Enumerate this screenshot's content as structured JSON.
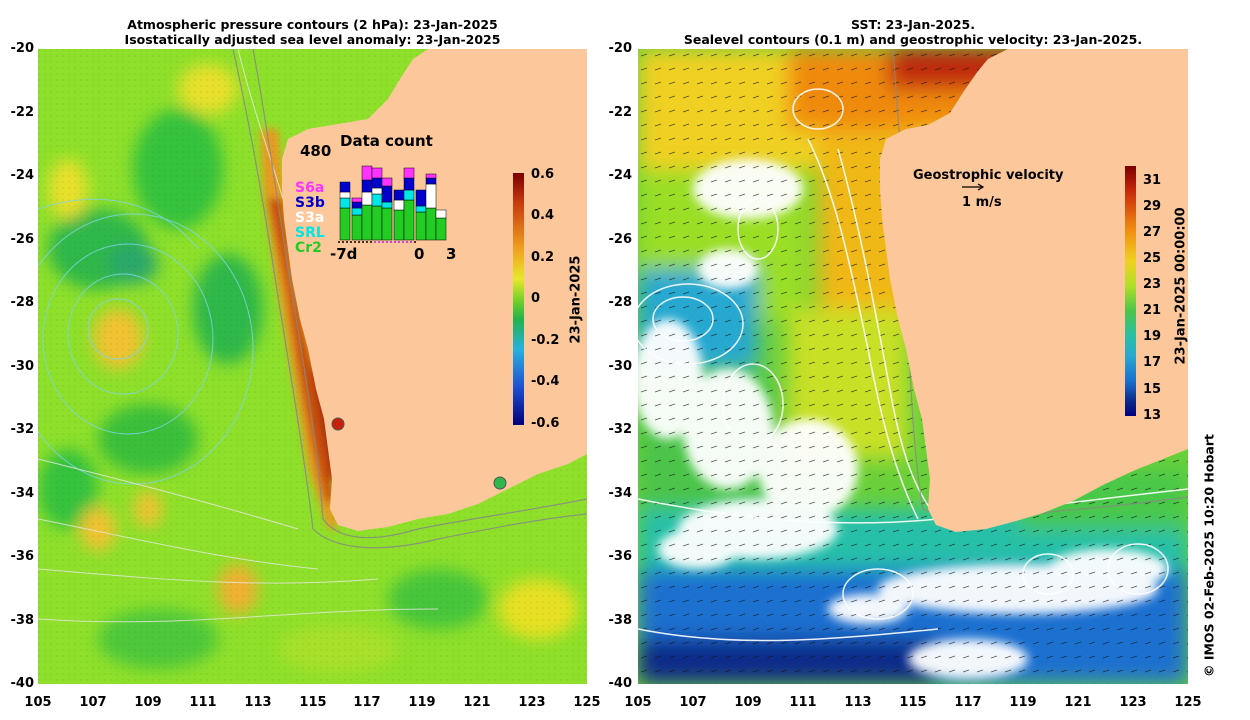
{
  "left_panel": {
    "title_line1": "Atmospheric pressure contours (2 hPa): 23-Jan-2025",
    "title_line2": "Isostatically adjusted sea level anomaly: 23-Jan-2025",
    "colorbar": {
      "ticks": [
        "0.6",
        "0.4",
        "0.2",
        "0",
        "-0.2",
        "-0.4",
        "-0.6"
      ],
      "label": "23-Jan-2025",
      "range": [
        -0.6,
        0.6
      ]
    },
    "inset": {
      "title": "Data count",
      "ymax_label": "480",
      "x_labels": [
        "-7d",
        "0",
        "3"
      ],
      "legend": [
        {
          "name": "S6a",
          "color": "#ff33ff"
        },
        {
          "name": "S3b",
          "color": "#0000cc"
        },
        {
          "name": "S3a",
          "color": "#ffffff"
        },
        {
          "name": "SRL",
          "color": "#00e5e5"
        },
        {
          "name": "Cr2",
          "color": "#22cc22"
        }
      ]
    }
  },
  "right_panel": {
    "title_line1": "SST: 23-Jan-2025.",
    "title_line2": "Sealevel contours (0.1 m) and geostrophic velocity: 23-Jan-2025.",
    "colorbar": {
      "ticks": [
        "31",
        "29",
        "27",
        "25",
        "23",
        "21",
        "19",
        "17",
        "15",
        "13"
      ],
      "label": "23-Jan-2025 00:00:00",
      "range": [
        13,
        32
      ]
    },
    "velocity_legend": {
      "title": "Geostrophic velocity",
      "scale": "1 m/s"
    },
    "copyright": "© IMOS 02-Feb-2025 10:20 Hobart"
  },
  "axes": {
    "lat_labels": [
      "-20",
      "-22",
      "-24",
      "-26",
      "-28",
      "-30",
      "-32",
      "-34",
      "-36",
      "-38",
      "-40"
    ],
    "lon_labels": [
      "105",
      "107",
      "109",
      "111",
      "113",
      "115",
      "117",
      "119",
      "121",
      "123",
      "125"
    ],
    "lat_range": [
      -40,
      -20
    ],
    "lon_range": [
      105,
      125
    ]
  },
  "colors": {
    "land": "#fcc89b",
    "ssh_low": "#00008b",
    "ssh_high": "#8b0000",
    "sst_low": "#0a1a8c",
    "sst_high": "#8b1a00"
  }
}
